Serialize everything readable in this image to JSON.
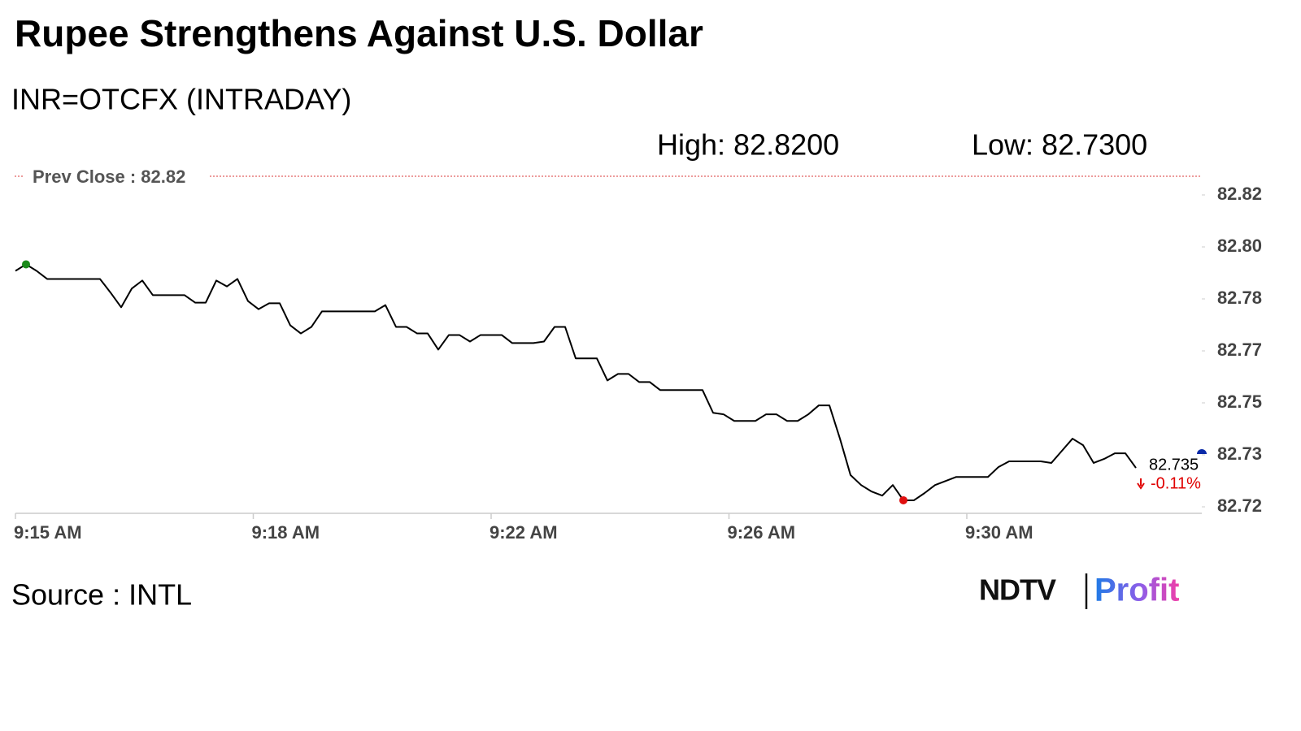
{
  "chart_data": {
    "type": "line",
    "title": "Rupee Strengthens Against U.S. Dollar",
    "subtitle": "INR=OTCFX (INTRADAY)",
    "high_label": "High: 82.8200",
    "low_label": "Low: 82.7300",
    "prev_close_label": "Prev Close : 82.82",
    "last_label": "82.735",
    "change_label": "-0.11%",
    "source": "Source : INTL",
    "logo": {
      "brand": "NDTV",
      "product": "Profit"
    },
    "color": "#000000",
    "values": [
      82.7918,
      82.7939,
      82.7918,
      82.7892,
      82.7892,
      82.7892,
      82.7892,
      82.7892,
      82.7892,
      82.7848,
      82.7801,
      82.7861,
      82.7887,
      82.784,
      82.784,
      82.784,
      82.784,
      82.7816,
      82.7816,
      82.7887,
      82.7868,
      82.7892,
      82.7821,
      82.7795,
      82.7814,
      82.7814,
      82.7743,
      82.7717,
      82.7738,
      82.7788,
      82.7788,
      82.7788,
      82.7788,
      82.7788,
      82.7788,
      82.7808,
      82.7738,
      82.7738,
      82.7717,
      82.7717,
      82.7665,
      82.7712,
      82.7712,
      82.7691,
      82.7712,
      82.7712,
      82.7712,
      82.7686,
      82.7686,
      82.7686,
      82.7691,
      82.7738,
      82.7738,
      82.7637,
      82.7637,
      82.7637,
      82.7566,
      82.7587,
      82.7587,
      82.7561,
      82.7561,
      82.7535,
      82.7535,
      82.7535,
      82.7535,
      82.7535,
      82.7462,
      82.7457,
      82.7436,
      82.7436,
      82.7436,
      82.7457,
      82.7457,
      82.7436,
      82.7436,
      82.7457,
      82.7486,
      82.7486,
      82.7379,
      82.7262,
      82.723,
      82.7209,
      82.7196,
      82.723,
      82.7181,
      82.7181,
      82.7204,
      82.723,
      82.7243,
      82.7256,
      82.7256,
      82.7256,
      82.7256,
      82.7288,
      82.7306,
      82.7306,
      82.7306,
      82.7306,
      82.7301,
      82.734,
      82.7379,
      82.7358,
      82.7301,
      82.7314,
      82.7332,
      82.7332,
      82.7285
    ],
    "xlim": [
      0,
      112
    ],
    "xticks": [
      {
        "value": 0,
        "label": "9:15 AM"
      },
      {
        "value": 22.5,
        "label": "9:18 AM"
      },
      {
        "value": 45,
        "label": "9:22 AM"
      },
      {
        "value": 67.5,
        "label": "9:26 AM"
      },
      {
        "value": 90,
        "label": "9:30 AM"
      }
    ],
    "ylim": [
      82.716,
      82.8162
    ],
    "yticks": [
      {
        "value": 82.716,
        "label": "82.72"
      },
      {
        "value": 82.7327,
        "label": "82.73"
      },
      {
        "value": 82.7494,
        "label": "82.75"
      },
      {
        "value": 82.7661,
        "label": "82.77"
      },
      {
        "value": 82.7828,
        "label": "82.78"
      },
      {
        "value": 82.7995,
        "label": "82.80"
      },
      {
        "value": 82.8162,
        "label": "82.82"
      }
    ]
  }
}
